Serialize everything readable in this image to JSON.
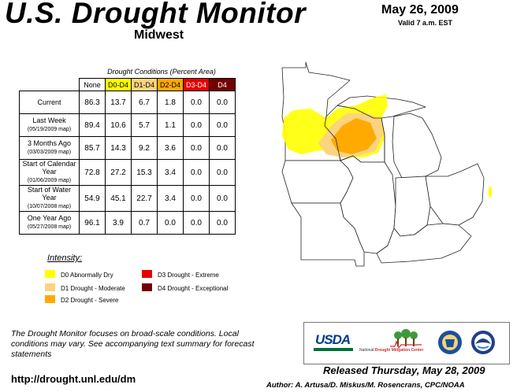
{
  "header": {
    "title": "U.S. Drought Monitor",
    "region": "Midwest",
    "date": "May 26, 2009",
    "valid": "Valid 7 a.m. EST"
  },
  "table": {
    "caption": "Drought Conditions (Percent Area)",
    "columns": [
      "None",
      "D0-D4",
      "D1-D4",
      "D2-D4",
      "D3-D4",
      "D4"
    ],
    "rows": [
      {
        "label": "Current",
        "sub": "",
        "values": [
          "86.3",
          "13.7",
          "6.7",
          "1.8",
          "0.0",
          "0.0"
        ]
      },
      {
        "label": "Last Week",
        "sub": "(05/19/2009 map)",
        "values": [
          "89.4",
          "10.6",
          "5.7",
          "1.1",
          "0.0",
          "0.0"
        ]
      },
      {
        "label": "3 Months Ago",
        "sub": "(03/03/2009 map)",
        "values": [
          "85.7",
          "14.3",
          "9.2",
          "3.6",
          "0.0",
          "0.0"
        ]
      },
      {
        "label": "Start of Calendar Year",
        "sub": "(01/06/2009 map)",
        "values": [
          "72.8",
          "27.2",
          "15.3",
          "3.4",
          "0.0",
          "0.0"
        ]
      },
      {
        "label": "Start of Water Year",
        "sub": "(10/07/2008 map)",
        "values": [
          "54.9",
          "45.1",
          "22.7",
          "3.4",
          "0.0",
          "0.0"
        ]
      },
      {
        "label": "One Year Ago",
        "sub": "(05/27/2008 map)",
        "values": [
          "96.1",
          "3.9",
          "0.7",
          "0.0",
          "0.0",
          "0.0"
        ]
      }
    ]
  },
  "legend": {
    "title": "Intensity:",
    "items": [
      {
        "label": "D0 Abnormally Dry",
        "color": "#ffff00"
      },
      {
        "label": "D1 Drought - Moderate",
        "color": "#fcd37f"
      },
      {
        "label": "D2 Drought - Severe",
        "color": "#ffaa00"
      },
      {
        "label": "D3 Drought - Extreme",
        "color": "#e60000"
      },
      {
        "label": "D4 Drought - Exceptional",
        "color": "#730000"
      }
    ]
  },
  "footer": {
    "note": "The Drought Monitor focuses on broad-scale conditions. Local conditions may vary. See accompanying text summary for forecast statements",
    "url": "http://drought.unl.edu/dm",
    "released": "Released Thursday, May 28, 2009",
    "author": "Author: A. Artusa/D. Miskus/M. Rosencrans, CPC/NOAA"
  },
  "logos": {
    "usda": "USDA",
    "ndmc_prefix": "National",
    "ndmc_name": "Drought Mitigation Center"
  }
}
